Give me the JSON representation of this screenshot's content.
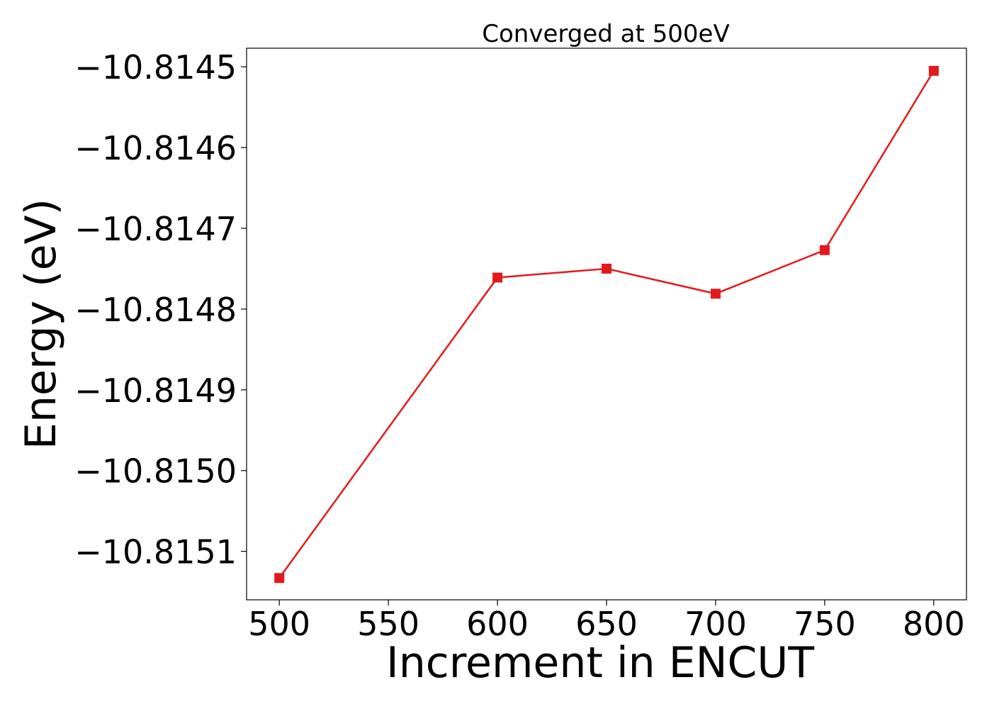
{
  "chart_data": {
    "type": "line",
    "title": "Converged at 500eV",
    "xlabel": "Increment in ENCUT",
    "ylabel": "Energy (eV)",
    "x": [
      500,
      600,
      650,
      700,
      750,
      800
    ],
    "series": [
      {
        "values": [
          -10.815133,
          -10.814761,
          -10.81475,
          -10.814781,
          -10.814727,
          -10.814505
        ],
        "color": "#e31a1c",
        "marker": "square"
      }
    ],
    "xlim": [
      485,
      815
    ],
    "ylim": [
      -10.81516,
      -10.814477
    ],
    "xticks": [
      500,
      550,
      600,
      650,
      700,
      750,
      800
    ],
    "xtick_labels": [
      "500",
      "550",
      "600",
      "650",
      "700",
      "750",
      "800"
    ],
    "yticks": [
      -10.8151,
      -10.815,
      -10.8149,
      -10.8148,
      -10.8147,
      -10.8146,
      -10.8145
    ],
    "ytick_labels": [
      "−10.8151",
      "−10.8150",
      "−10.8149",
      "−10.8148",
      "−10.8147",
      "−10.8146",
      "−10.8145"
    ],
    "grid": false,
    "legend": "none"
  }
}
